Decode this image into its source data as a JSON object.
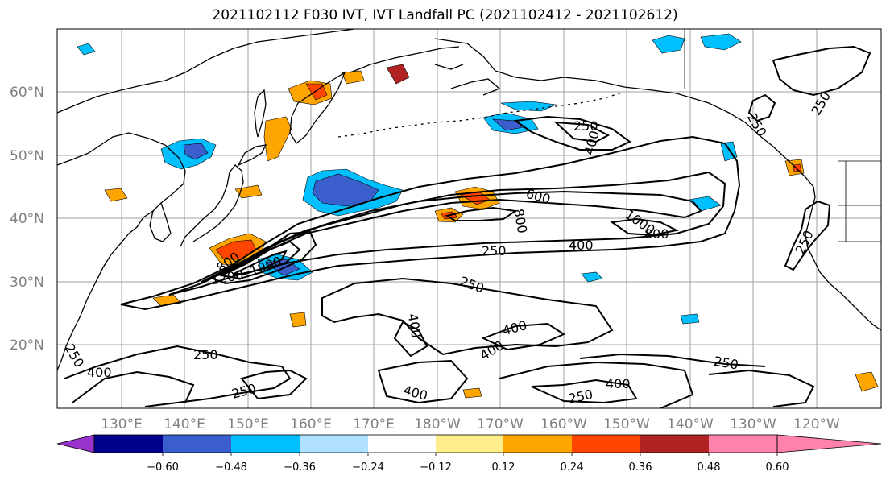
{
  "title": "2021102112 F030 IVT, IVT Landfall PC (2021102412 - 2021102612)",
  "map": {
    "lat_labels": [
      "60°N",
      "50°N",
      "40°N",
      "30°N",
      "20°N"
    ],
    "lon_labels": [
      "130°E",
      "140°E",
      "150°E",
      "160°E",
      "170°E",
      "180°W",
      "170°W",
      "160°W",
      "150°W",
      "140°W",
      "130°W",
      "120°W"
    ],
    "contour_labels": [
      {
        "text": "250"
      },
      {
        "text": "250"
      },
      {
        "text": "250"
      },
      {
        "text": "250"
      },
      {
        "text": "250"
      },
      {
        "text": "250"
      },
      {
        "text": "250"
      },
      {
        "text": "250"
      },
      {
        "text": "250"
      },
      {
        "text": "250"
      },
      {
        "text": "400"
      },
      {
        "text": "400"
      },
      {
        "text": "400"
      },
      {
        "text": "400"
      },
      {
        "text": "400"
      },
      {
        "text": "400"
      },
      {
        "text": "400"
      },
      {
        "text": "400"
      },
      {
        "text": "600"
      },
      {
        "text": "800"
      },
      {
        "text": "800"
      },
      {
        "text": "800"
      },
      {
        "text": "1000"
      },
      {
        "text": "1000"
      },
      {
        "text": "1200"
      }
    ]
  },
  "colorbar": {
    "ticks": [
      "−0.60",
      "−0.48",
      "−0.36",
      "−0.24",
      "−0.12",
      "0.12",
      "0.24",
      "0.36",
      "0.48",
      "0.60"
    ],
    "colors": [
      "#9932CC",
      "#00008B",
      "#3A5FCD",
      "#00BFFF",
      "#B0E2FF",
      "#FFFFFF",
      "#FFEC8B",
      "#FFA500",
      "#FF4500",
      "#B22222",
      "#FF82AB"
    ]
  }
}
